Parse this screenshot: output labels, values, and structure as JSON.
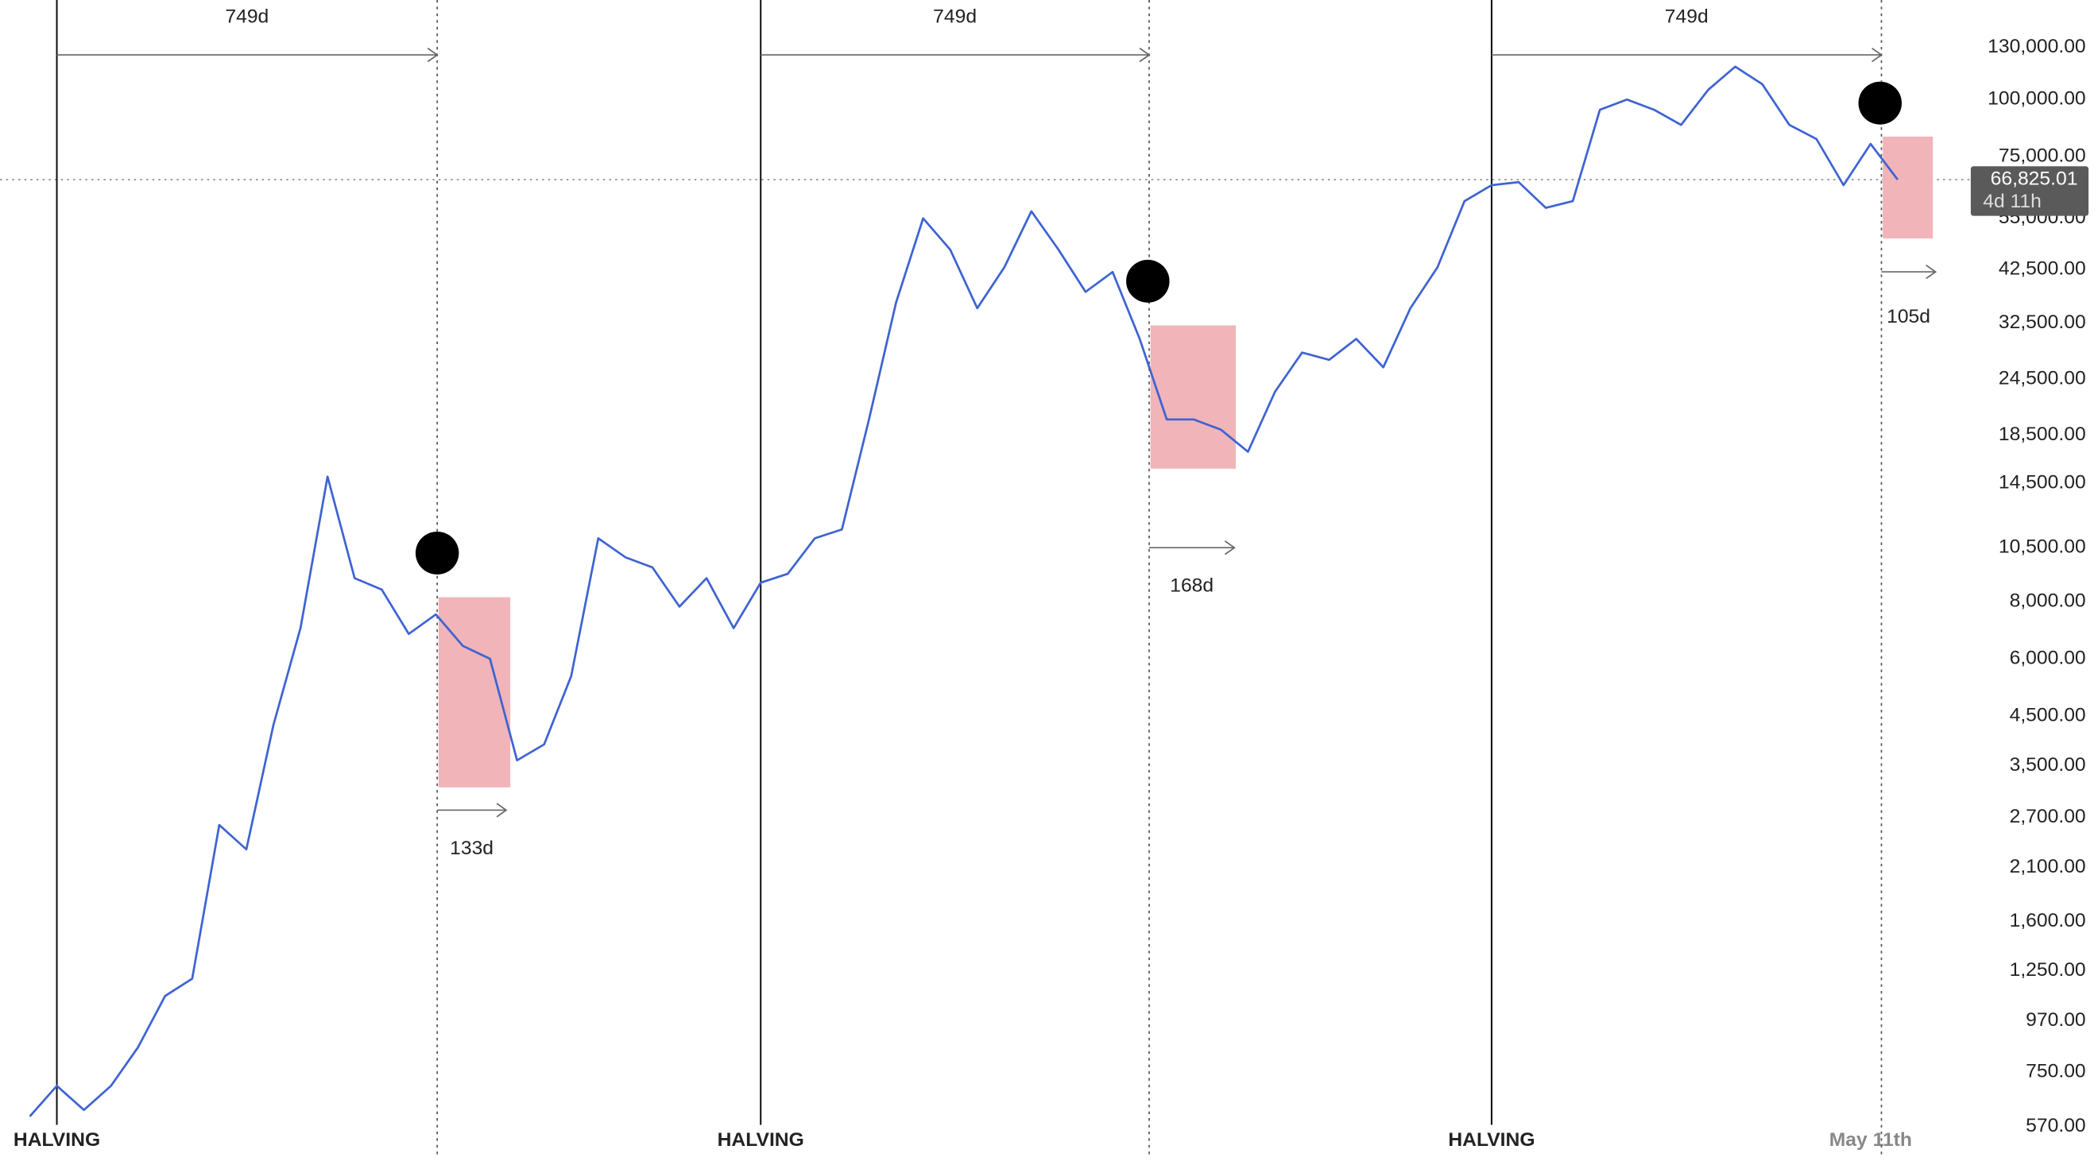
{
  "chart_data": {
    "type": "line",
    "log_scale": true,
    "color": "#3e63d2",
    "categories": [
      null,
      "HALVING",
      null,
      null,
      null,
      null,
      null,
      null,
      null,
      null,
      null,
      null,
      null,
      null,
      null,
      null,
      null,
      null,
      null,
      null,
      null,
      null,
      null,
      null,
      null,
      null,
      null,
      "HALVING",
      null,
      null,
      null,
      null,
      null,
      null,
      null,
      null,
      null,
      null,
      null,
      null,
      null,
      null,
      null,
      null,
      null,
      null,
      null,
      null,
      null,
      null,
      null,
      null,
      null,
      null,
      "HALVING",
      null,
      null,
      null,
      null,
      null,
      null,
      null,
      null,
      null,
      null,
      null,
      null,
      null,
      "May 11th",
      null
    ],
    "values": [
      600,
      700,
      620,
      700,
      850,
      1100,
      1200,
      2600,
      2300,
      4300,
      7000,
      15000,
      9000,
      8500,
      6800,
      7500,
      6400,
      6000,
      3600,
      3900,
      5500,
      11000,
      10000,
      9500,
      7800,
      9000,
      7000,
      8800,
      9200,
      11000,
      11500,
      20000,
      36000,
      55000,
      47000,
      35000,
      43000,
      57000,
      47000,
      38000,
      42000,
      30000,
      20000,
      20000,
      19000,
      17000,
      23000,
      28000,
      27000,
      30000,
      26000,
      35000,
      43000,
      60000,
      65000,
      66000,
      58000,
      60000,
      95000,
      100000,
      95000,
      88000,
      105000,
      118000,
      108000,
      88000,
      82000,
      65000,
      80000,
      66825.01
    ],
    "ylim": [
      470,
      165000
    ],
    "yticks": [
      {
        "value": 570,
        "label": "570.00"
      },
      {
        "value": 750,
        "label": "750.00"
      },
      {
        "value": 970,
        "label": "970.00"
      },
      {
        "value": 1250,
        "label": "1,250.00"
      },
      {
        "value": 1600,
        "label": "1,600.00"
      },
      {
        "value": 2100,
        "label": "2,100.00"
      },
      {
        "value": 2700,
        "label": "2,700.00"
      },
      {
        "value": 3500,
        "label": "3,500.00"
      },
      {
        "value": 4500,
        "label": "4,500.00"
      },
      {
        "value": 6000,
        "label": "6,000.00"
      },
      {
        "value": 8000,
        "label": "8,000.00"
      },
      {
        "value": 10500,
        "label": "10,500.00"
      },
      {
        "value": 14500,
        "label": "14,500.00"
      },
      {
        "value": 18500,
        "label": "18,500.00"
      },
      {
        "value": 24500,
        "label": "24,500.00"
      },
      {
        "value": 32500,
        "label": "32,500.00"
      },
      {
        "value": 42500,
        "label": "42,500.00"
      },
      {
        "value": 55000,
        "label": "55,000.00"
      },
      {
        "value": 75000,
        "label": "75,000.00"
      },
      {
        "value": 100000,
        "label": "100,000.00"
      },
      {
        "value": 130000,
        "label": "130,000.00"
      }
    ],
    "last_price": {
      "value": 66825.01,
      "label": "66,825.01"
    },
    "countdown": "4d 11h",
    "cycles": [
      {
        "duration": "749d",
        "drawdown": "133d"
      },
      {
        "duration": "749d",
        "drawdown": "168d"
      },
      {
        "duration": "749d",
        "drawdown": "105d"
      }
    ]
  }
}
